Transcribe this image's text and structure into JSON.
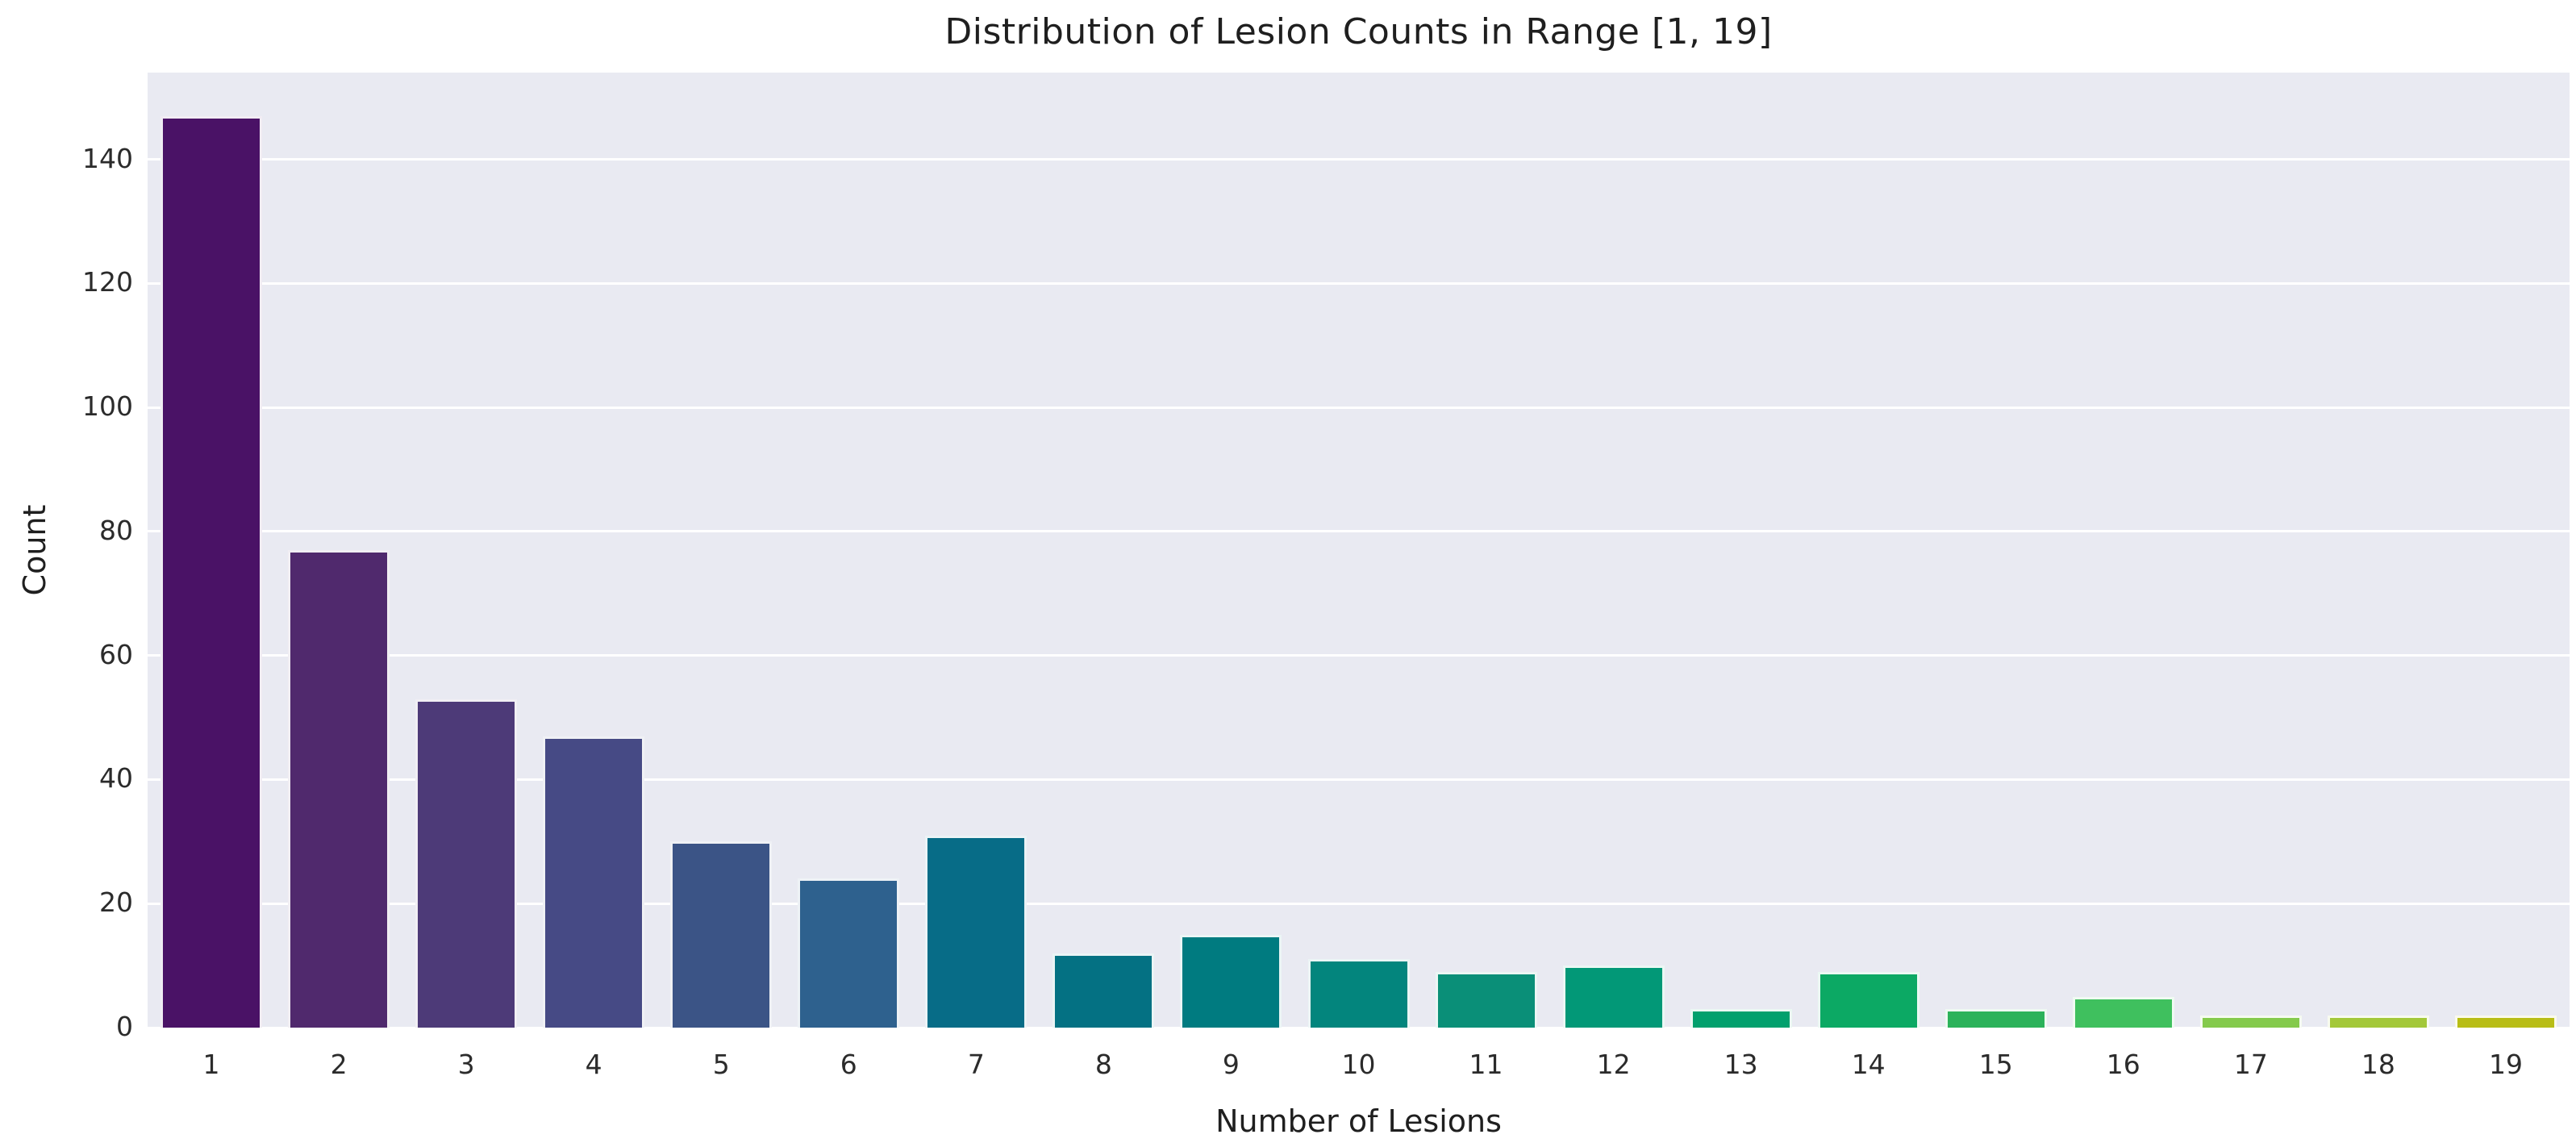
{
  "chart_data": {
    "type": "bar",
    "title": "Distribution of Lesion Counts in Range [1, 19]",
    "xlabel": "Number of Lesions",
    "ylabel": "Count",
    "categories": [
      "1",
      "2",
      "3",
      "4",
      "5",
      "6",
      "7",
      "8",
      "9",
      "10",
      "11",
      "12",
      "13",
      "14",
      "15",
      "16",
      "17",
      "18",
      "19"
    ],
    "values": [
      147,
      77,
      53,
      47,
      30,
      24,
      31,
      12,
      15,
      11,
      9,
      10,
      3,
      9,
      3,
      5,
      2,
      2,
      2
    ],
    "yticks": [
      0,
      20,
      40,
      60,
      80,
      100,
      120,
      140
    ],
    "ylim": [
      0,
      154
    ],
    "grid": "horizontal",
    "legend": "none",
    "plot_bg_color": "#e9eaf2",
    "grid_color": "#ffffff",
    "text_color": "#1f1f1f",
    "bar_colors": [
      "#4a1266",
      "#50296d",
      "#4d3a78",
      "#464a85",
      "#3b5486",
      "#2e618e",
      "#076c87",
      "#047183",
      "#007b80",
      "#03857d",
      "#0a8f78",
      "#029877",
      "#02a06d",
      "#0ca964",
      "#2bb25a",
      "#3fc05e",
      "#84ca4c",
      "#a3c839",
      "#b8bd16"
    ]
  }
}
